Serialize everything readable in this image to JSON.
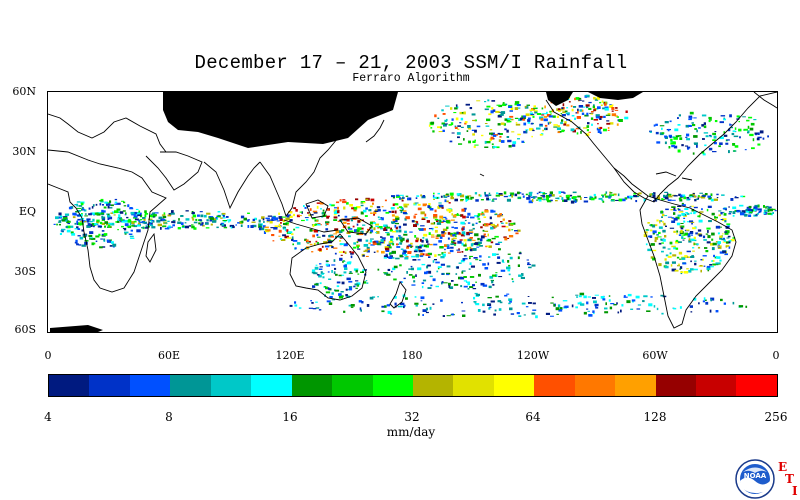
{
  "title": "December 17 – 21, 2003 SSM/I Rainfall",
  "subtitle": "Ferraro Algorithm",
  "map": {
    "lat_labels": [
      "60N",
      "30N",
      "EQ",
      "30S",
      "60S"
    ],
    "lon_labels": [
      "0",
      "60E",
      "120E",
      "180",
      "120W",
      "60W",
      "0"
    ],
    "lat_range": [
      -60,
      60
    ],
    "lon_range": [
      0,
      360
    ],
    "land_color": "#ffffff",
    "missing_data_color": "#000000"
  },
  "colorbar": {
    "tick_labels": [
      "4",
      "8",
      "16",
      "32",
      "64",
      "128",
      "256"
    ],
    "units": "mm/day",
    "colors": [
      "#001a80",
      "#0032c8",
      "#0050ff",
      "#009696",
      "#00c8c8",
      "#00ffff",
      "#009600",
      "#00c800",
      "#00ff00",
      "#b4b400",
      "#e1e100",
      "#ffff00",
      "#ff5000",
      "#ff7800",
      "#ffa000",
      "#960000",
      "#c80000",
      "#ff0000"
    ]
  },
  "logo": {
    "noaa_text": "NOAA",
    "eti_letters": [
      "E",
      "T",
      "I"
    ]
  }
}
